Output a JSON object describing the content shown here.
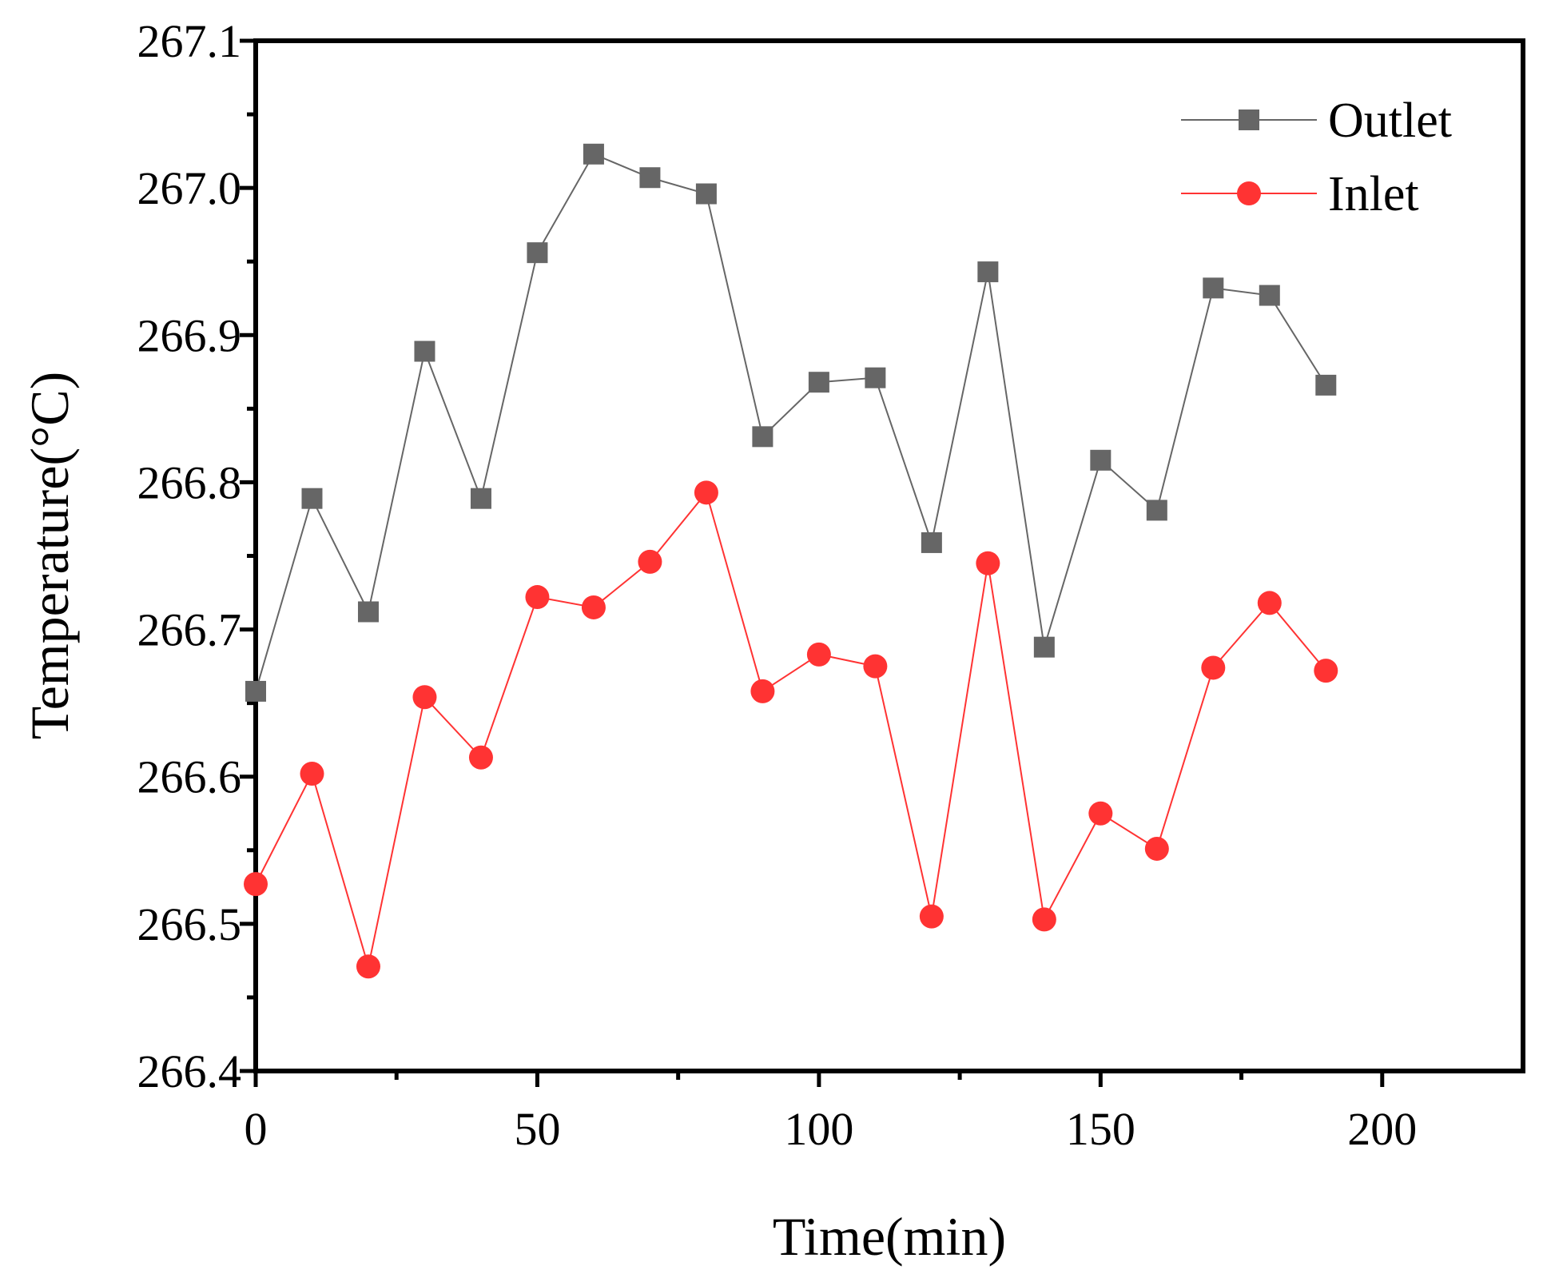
{
  "chart_data": {
    "type": "line",
    "title": "",
    "xlabel": "Time(min)",
    "ylabel": "Temperature(°C)",
    "xlim": [
      0,
      225
    ],
    "ylim": [
      266.4,
      267.1
    ],
    "xticks": [
      0,
      50,
      100,
      150,
      200
    ],
    "xtick_labels": [
      "0",
      "50",
      "100",
      "150",
      "200"
    ],
    "yticks": [
      266.4,
      266.5,
      266.6,
      266.7,
      266.8,
      266.9,
      267.0,
      267.1
    ],
    "ytick_labels": [
      "266.4",
      "266.5",
      "266.6",
      "266.7",
      "266.8",
      "266.9",
      "267.0",
      "267.1"
    ],
    "legend_position": "top-right",
    "grid": false,
    "x": [
      0,
      10,
      20,
      30,
      40,
      50,
      60,
      70,
      80,
      90,
      100,
      110,
      120,
      130,
      140,
      150,
      160,
      170,
      180,
      190
    ],
    "series": [
      {
        "name": "Outlet",
        "color": "#666666",
        "marker": "square",
        "values": [
          266.658,
          266.789,
          266.712,
          266.889,
          266.789,
          266.956,
          267.023,
          267.007,
          266.996,
          266.831,
          266.868,
          266.871,
          266.759,
          266.943,
          266.688,
          266.815,
          266.781,
          266.932,
          266.927,
          266.866
        ]
      },
      {
        "name": "Inlet",
        "color": "#ff3333",
        "marker": "circle",
        "values": [
          266.527,
          266.602,
          266.471,
          266.654,
          266.613,
          266.722,
          266.715,
          266.746,
          266.793,
          266.658,
          266.683,
          266.675,
          266.505,
          266.745,
          266.503,
          266.575,
          266.551,
          266.674,
          266.718,
          266.672
        ]
      }
    ]
  }
}
